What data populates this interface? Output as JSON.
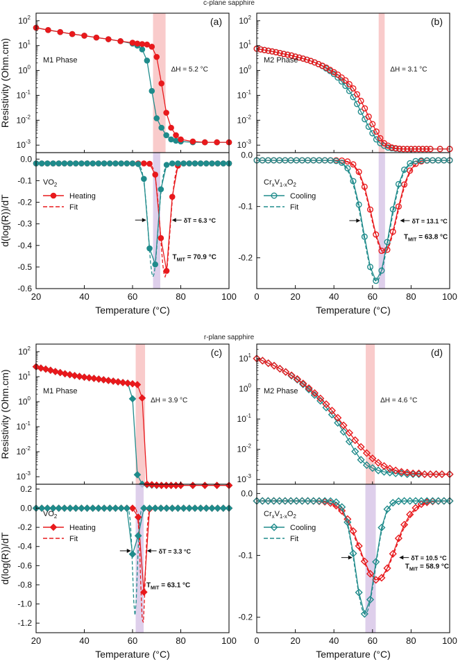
{
  "figure": {
    "header_top": "c-plane sapphire",
    "header_bottom": "r-plane sapphire"
  },
  "colors": {
    "heating": "#e8191c",
    "cooling": "#1f8b8b",
    "dH_band": "#f7b9b9",
    "dT_band": "#d6c3e6",
    "dH_text": "#f08070",
    "tmit_text": "#7a1f8f"
  },
  "chart_data": [
    {
      "id": "a",
      "type": "line",
      "panel_label": "(a)",
      "top": {
        "ylabel": "Resistivity (Ohm.cm)",
        "yscale": "log",
        "ylim": [
          0.0005,
          200
        ],
        "ytick_values": [
          0.001,
          0.01,
          0.1,
          1,
          10,
          100
        ],
        "ytick_labels": [
          "10",
          "10",
          "10",
          "10",
          "10",
          "10"
        ],
        "ytick_exps": [
          "-3",
          "-2",
          "-1",
          "0",
          "1",
          "2"
        ],
        "phase_label": "M1 Phase",
        "annotation": "ΔH = 5.2 °C",
        "band": [
          68.5,
          73.7
        ],
        "marker": "filled-circle",
        "series": [
          {
            "name": "Heating",
            "color": "heating",
            "x": [
              20,
              25,
              30,
              35,
              40,
              45,
              50,
              55,
              60,
              62,
              64,
              66,
              68,
              70,
              72,
              74,
              76,
              78,
              80,
              85,
              90,
              95,
              100
            ],
            "y": [
              52,
              42,
              35,
              29,
              25,
              21,
              18,
              15,
              13,
              12,
              11.5,
              11,
              9,
              3.5,
              0.3,
              0.02,
              0.005,
              0.0025,
              0.0017,
              0.0014,
              0.0013,
              0.0013,
              0.0013
            ]
          },
          {
            "name": "Cooling",
            "color": "cooling",
            "x": [
              20,
              25,
              30,
              35,
              40,
              45,
              50,
              55,
              60,
              62,
              64,
              66,
              68,
              70,
              72,
              74,
              76,
              78,
              80,
              85,
              90,
              95,
              100
            ],
            "y": [
              52,
              42,
              35,
              29,
              25,
              21,
              18,
              15,
              12,
              10,
              7,
              2.5,
              0.15,
              0.012,
              0.005,
              0.0025,
              0.0017,
              0.0015,
              0.0014,
              0.0013,
              0.0013,
              0.0013,
              0.0013
            ]
          }
        ]
      },
      "bottom": {
        "ylabel": "d(log(R))/dT",
        "ylim": [
          -0.6,
          0.03
        ],
        "ytick_values": [
          0.0,
          -0.1,
          -0.2,
          -0.3,
          -0.4,
          -0.5,
          -0.6
        ],
        "ytick_labels": [
          "0.0",
          "-0.1",
          "-0.2",
          "-0.3",
          "-0.4",
          "-0.5",
          "-0.6"
        ],
        "material": "VO",
        "material_sub": "2",
        "legend": {
          "heating": "Heating",
          "fit": "Fit"
        },
        "dT_annotation": "δT = 6.3 °C",
        "tmit_main": "T",
        "tmit_sub": "MIT",
        "tmit_rest": " = 70.9 °C",
        "band": [
          68.5,
          71.5
        ],
        "heating_center": 73.5,
        "heating_sigma": 1.9,
        "heating_min": -0.545,
        "cooling_center": 68.5,
        "cooling_sigma": 1.9,
        "cooling_min": -0.545,
        "baseline": -0.02
      }
    },
    {
      "id": "b",
      "type": "line",
      "panel_label": "(b)",
      "top": {
        "ylabel": "",
        "yscale": "log",
        "ylim": [
          0.0005,
          200
        ],
        "ytick_values": [
          0.001,
          0.01,
          0.1,
          1,
          10,
          100
        ],
        "ytick_labels": [
          "10",
          "10",
          "10",
          "10",
          "10",
          "10"
        ],
        "ytick_exps": [
          "-3",
          "-2",
          "-1",
          "0",
          "1",
          "2"
        ],
        "phase_label": "M2 Phase",
        "annotation": "ΔH = 3.1 °C",
        "band": [
          63.2,
          66.3
        ],
        "marker": "open-circle",
        "series": [
          {
            "name": "Heating",
            "color": "heating",
            "x": [
              0,
              2,
              4,
              6,
              8,
              10,
              12,
              14,
              16,
              18,
              20,
              22,
              24,
              26,
              28,
              30,
              32,
              34,
              36,
              38,
              40,
              42,
              44,
              46,
              48,
              50,
              52,
              54,
              56,
              58,
              60,
              62,
              64,
              66,
              68,
              70,
              72,
              74,
              76,
              78,
              80,
              82,
              84,
              86,
              88,
              90,
              95,
              100
            ],
            "y": [
              7.5,
              7,
              6.6,
              6.2,
              5.8,
              5.4,
              5,
              4.6,
              4.3,
              4,
              3.6,
              3.3,
              3,
              2.7,
              2.4,
              2.1,
              1.8,
              1.55,
              1.3,
              1.05,
              0.85,
              0.68,
              0.52,
              0.4,
              0.28,
              0.19,
              0.11,
              0.06,
              0.03,
              0.014,
              0.007,
              0.0035,
              0.0019,
              0.0012,
              0.00095,
              0.0008,
              0.00075,
              0.00072,
              0.0007,
              0.0007,
              0.0007,
              0.0007,
              0.0007,
              0.0007,
              0.0007,
              0.0007,
              0.0007,
              0.0007
            ]
          },
          {
            "name": "Cooling",
            "color": "cooling",
            "x": [
              0,
              2,
              4,
              6,
              8,
              10,
              12,
              14,
              16,
              18,
              20,
              22,
              24,
              26,
              28,
              30,
              32,
              34,
              36,
              38,
              40,
              42,
              44,
              46,
              48,
              50,
              52,
              54,
              56,
              58,
              60,
              62,
              64,
              66,
              68,
              70,
              72,
              74,
              76,
              78,
              80,
              82,
              84,
              86,
              88,
              90,
              95,
              100
            ],
            "y": [
              7.5,
              7,
              6.6,
              6.2,
              5.8,
              5.4,
              5,
              4.6,
              4.3,
              4,
              3.6,
              3.3,
              3,
              2.7,
              2.4,
              2.1,
              1.8,
              1.5,
              1.2,
              0.95,
              0.72,
              0.52,
              0.36,
              0.24,
              0.15,
              0.085,
              0.045,
              0.022,
              0.011,
              0.0055,
              0.003,
              0.0017,
              0.0012,
              0.00095,
              0.0008,
              0.00075,
              0.00072,
              0.0007,
              0.0007,
              0.0007,
              0.0007,
              0.0007,
              0.0007,
              0.0007,
              0.0007,
              0.0007,
              0.0007,
              0.0007
            ]
          }
        ]
      },
      "bottom": {
        "ylabel": "",
        "ylim": [
          -0.26,
          0.005
        ],
        "ytick_values": [
          0.0,
          -0.1,
          -0.2
        ],
        "ytick_labels": [
          "0.0",
          "-0.1",
          "-0.2"
        ],
        "material": "Cr",
        "material_sub": "x",
        "material_mid": "V",
        "material_sub2": "1-x",
        "material_end": "O",
        "material_sub3": "2",
        "legend": {
          "cooling": "Cooling",
          "fit": "Fit"
        },
        "dT_annotation": "δT = 13.1 °C",
        "tmit_main": "T",
        "tmit_sub": "MIT",
        "tmit_rest": " = 63.8 °C",
        "band": [
          63.2,
          66.5
        ],
        "heating_center": 66,
        "heating_sigma": 6.4,
        "heating_min": -0.19,
        "cooling_center": 62,
        "cooling_sigma": 6.4,
        "cooling_min": -0.245,
        "baseline": -0.01
      }
    },
    {
      "id": "c",
      "type": "line",
      "panel_label": "(c)",
      "top": {
        "ylabel": "Resistivity (Ohm.cm)",
        "yscale": "log",
        "ylim": [
          0.0005,
          200
        ],
        "ytick_values": [
          0.001,
          0.01,
          0.1,
          1,
          10,
          100
        ],
        "ytick_labels": [
          "10",
          "10",
          "10",
          "10",
          "10",
          "10"
        ],
        "ytick_exps": [
          "-3",
          "-2",
          "-1",
          "0",
          "1",
          "2"
        ],
        "phase_label": "M1 Phase",
        "annotation": "ΔH = 3.9 °C",
        "band": [
          61.3,
          65.2
        ],
        "marker": "filled-diamond",
        "series": [
          {
            "name": "Heating",
            "color": "heating",
            "x": [
              20,
              22,
              24,
              26,
              28,
              30,
              32,
              34,
              36,
              38,
              40,
              42,
              44,
              46,
              48,
              50,
              52,
              54,
              56,
              58,
              60,
              62,
              64,
              66,
              68,
              70,
              72,
              74,
              76,
              78,
              80,
              85,
              90,
              95,
              100
            ],
            "y": [
              25,
              22,
              20,
              18,
              16,
              14.5,
              13,
              12,
              11,
              10.2,
              9.5,
              9,
              8.5,
              8,
              7.5,
              7,
              6.6,
              6.2,
              5.8,
              5.5,
              5.2,
              4.8,
              1.4,
              0.0005,
              0.00048,
              0.00046,
              0.00045,
              0.00045,
              0.00045,
              0.00045,
              0.00045,
              0.00045,
              0.00045,
              0.00045,
              0.00045
            ]
          },
          {
            "name": "Cooling",
            "color": "cooling",
            "x": [
              20,
              22,
              24,
              26,
              28,
              30,
              32,
              34,
              36,
              38,
              40,
              42,
              44,
              46,
              48,
              50,
              52,
              54,
              56,
              58,
              60,
              62,
              64,
              66,
              68,
              70,
              72,
              74,
              76,
              78,
              80,
              85,
              90,
              95,
              100
            ],
            "y": [
              25,
              22,
              20,
              18,
              16,
              14.5,
              13,
              12,
              11,
              10.2,
              9.5,
              9,
              8.5,
              8,
              7.5,
              7,
              6.6,
              6.2,
              5.8,
              5.5,
              1.3,
              0.0012,
              0.0005,
              0.00048,
              0.00046,
              0.00045,
              0.00045,
              0.00045,
              0.00045,
              0.00045,
              0.00045,
              0.00045,
              0.00045,
              0.00045,
              0.00045
            ]
          }
        ]
      },
      "bottom": {
        "ylabel": "d(log(R))/dT",
        "ylim": [
          -1.3,
          0.25
        ],
        "ytick_values": [
          0.2,
          0.0,
          -0.2,
          -0.4,
          -0.6,
          -0.8,
          -1.0,
          -1.2
        ],
        "ytick_labels": [
          "0.2",
          "0.0",
          "-0.2",
          "-0.4",
          "-0.6",
          "-0.8",
          "-1.0",
          "-1.2"
        ],
        "material": "VO",
        "material_sub": "2",
        "legend": {
          "heating": "Heating",
          "fit": "Fit"
        },
        "dT_annotation": "δT = 3.3 °C",
        "tmit_main": "T",
        "tmit_sub": "MIT",
        "tmit_rest": " = 63.1 °C",
        "band": [
          61.3,
          64.6
        ],
        "heating_center": 64.3,
        "heating_sigma": 0.9,
        "heating_min": -0.97,
        "cooling_center": 61,
        "cooling_sigma": 0.9,
        "cooling_min": -0.89,
        "fit_min": -1.22,
        "baseline": 0.0
      }
    },
    {
      "id": "d",
      "type": "line",
      "panel_label": "(d)",
      "top": {
        "ylabel": "",
        "yscale": "log",
        "ylim": [
          0.0007,
          30
        ],
        "ytick_values": [
          0.001,
          0.01,
          0.1,
          1,
          10
        ],
        "ytick_labels": [
          "10",
          "10",
          "10",
          "10",
          "10"
        ],
        "ytick_exps": [
          "-3",
          "-2",
          "-1",
          "0",
          "1"
        ],
        "phase_label": "M2 Phase",
        "annotation": "ΔH = 4.6 °C",
        "band": [
          56.5,
          61.2
        ],
        "marker": "open-diamond",
        "series": [
          {
            "name": "Heating",
            "color": "heating",
            "x": [
              0,
              3,
              6,
              9,
              12,
              15,
              18,
              21,
              24,
              27,
              30,
              33,
              36,
              39,
              42,
              45,
              48,
              51,
              54,
              57,
              60,
              63,
              66,
              69,
              72,
              75,
              78,
              81,
              84,
              87,
              90,
              93,
              96,
              100
            ],
            "y": [
              10,
              8.5,
              7,
              5.8,
              4.6,
              3.6,
              2.8,
              2.1,
              1.5,
              1.05,
              0.72,
              0.48,
              0.31,
              0.19,
              0.11,
              0.062,
              0.035,
              0.02,
              0.012,
              0.0075,
              0.005,
              0.0036,
              0.0028,
              0.0023,
              0.002,
              0.0018,
              0.0017,
              0.0016,
              0.0016,
              0.0015,
              0.0015,
              0.0015,
              0.0015,
              0.0015
            ]
          },
          {
            "name": "Cooling",
            "color": "cooling",
            "x": [
              0,
              3,
              6,
              9,
              12,
              15,
              18,
              21,
              24,
              27,
              30,
              33,
              36,
              39,
              42,
              45,
              48,
              51,
              54,
              57,
              60,
              63,
              66,
              69,
              72,
              75,
              78,
              81,
              84,
              87,
              90,
              93,
              96,
              100
            ],
            "y": [
              10,
              8.5,
              7,
              5.8,
              4.6,
              3.6,
              2.7,
              2,
              1.4,
              0.95,
              0.62,
              0.4,
              0.24,
              0.14,
              0.075,
              0.038,
              0.018,
              0.0085,
              0.0045,
              0.003,
              0.0024,
              0.002,
              0.0018,
              0.0017,
              0.0016,
              0.0016,
              0.0015,
              0.0015,
              0.0015,
              0.0015,
              0.0015,
              0.0015,
              0.0015,
              0.0015
            ]
          }
        ]
      },
      "bottom": {
        "ylabel": "",
        "ylim": [
          -0.225,
          0.015
        ],
        "ytick_values": [
          0.0,
          -0.1,
          -0.2
        ],
        "ytick_labels": [
          "0.0",
          "-0.1",
          "-0.2"
        ],
        "material": "Cr",
        "material_sub": "x",
        "material_mid": "V",
        "material_sub2": "1-x",
        "material_end": "O",
        "material_sub3": "2",
        "legend": {
          "cooling": "Cooling",
          "fit": "Fit"
        },
        "dT_annotation": "δT = 10.5 °C",
        "tmit_main": "T",
        "tmit_sub": "MIT",
        "tmit_rest": " = 58.9 °C",
        "band": [
          56.3,
          61.7
        ],
        "heating_center": 62.5,
        "heating_sigma": 9.0,
        "heating_min": -0.14,
        "cooling_center": 56.2,
        "cooling_sigma": 5.0,
        "cooling_min": -0.195,
        "baseline": -0.012
      }
    }
  ],
  "xaxis": {
    "label": "Temperature (°C)",
    "panels_ab_left_xlim": [
      20,
      100
    ],
    "panels_ab_left_ticks": [
      "20",
      "40",
      "60",
      "80",
      "100"
    ],
    "panels_right_xlim": [
      0,
      100
    ],
    "panels_right_ticks": [
      "0",
      "20",
      "40",
      "60",
      "80",
      "100"
    ]
  }
}
